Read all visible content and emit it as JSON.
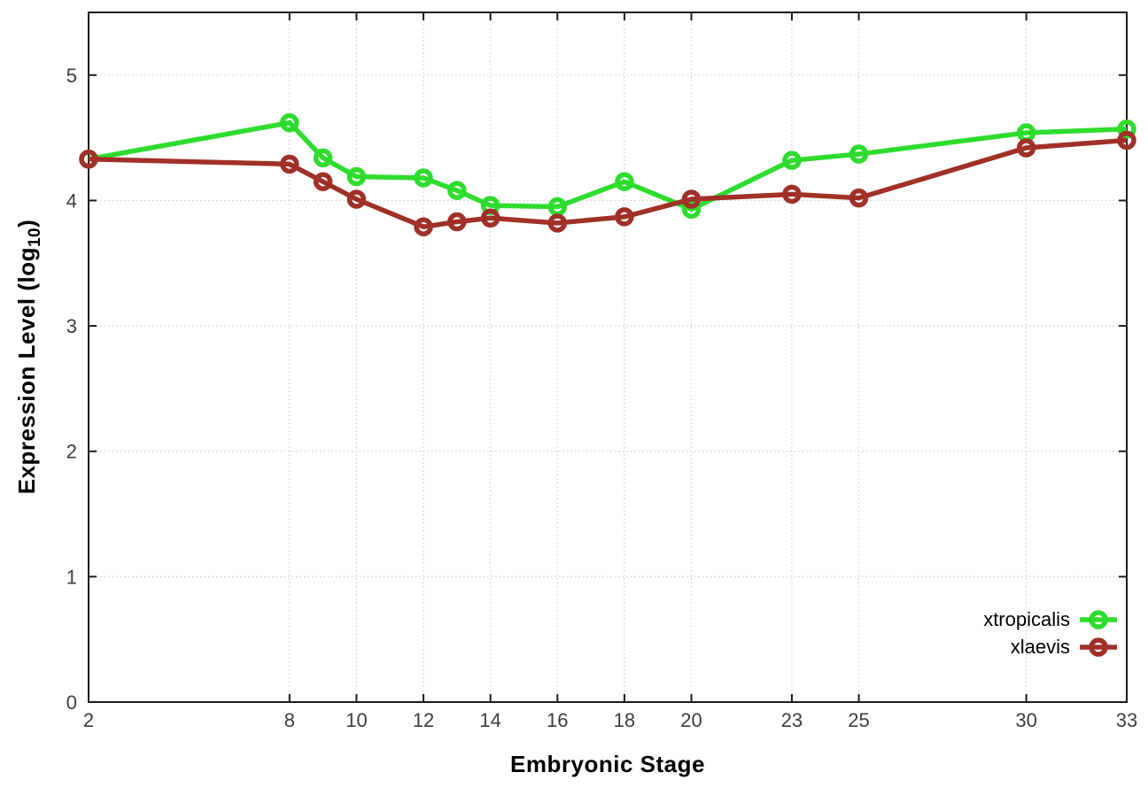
{
  "page": {
    "background": "#ffffff"
  },
  "chart_data": {
    "type": "line",
    "title": "",
    "xlabel": "Embryonic Stage",
    "ylabel": "Expression Level (log10)",
    "ylabel_parts": {
      "prefix": "Expression Level (log",
      "subscript": "10",
      "suffix": ")"
    },
    "x": [
      2,
      8,
      9,
      10,
      12,
      13,
      14,
      16,
      18,
      20,
      23,
      25,
      30,
      33
    ],
    "series": [
      {
        "name": "xtropicalis",
        "color": "#2edc2e",
        "marker": "open-circle",
        "values": [
          4.33,
          4.62,
          4.34,
          4.19,
          4.18,
          4.08,
          3.96,
          3.95,
          4.15,
          3.93,
          4.32,
          4.37,
          4.54,
          4.57
        ]
      },
      {
        "name": "xlaevis",
        "color": "#a03028",
        "marker": "open-circle",
        "values": [
          4.33,
          4.29,
          4.15,
          4.01,
          3.79,
          3.83,
          3.86,
          3.82,
          3.87,
          4.01,
          4.05,
          4.02,
          4.42,
          4.48
        ]
      }
    ],
    "xticks": [
      2,
      8,
      10,
      12,
      14,
      16,
      18,
      20,
      23,
      25,
      30,
      33
    ],
    "yticks": [
      0,
      1,
      2,
      3,
      4,
      5
    ],
    "xlim": [
      2,
      33
    ],
    "ylim": [
      0,
      5.5
    ],
    "grid": true,
    "legend": {
      "position": "inside-bottom-right",
      "entries": [
        "xtropicalis",
        "xlaevis"
      ]
    }
  }
}
